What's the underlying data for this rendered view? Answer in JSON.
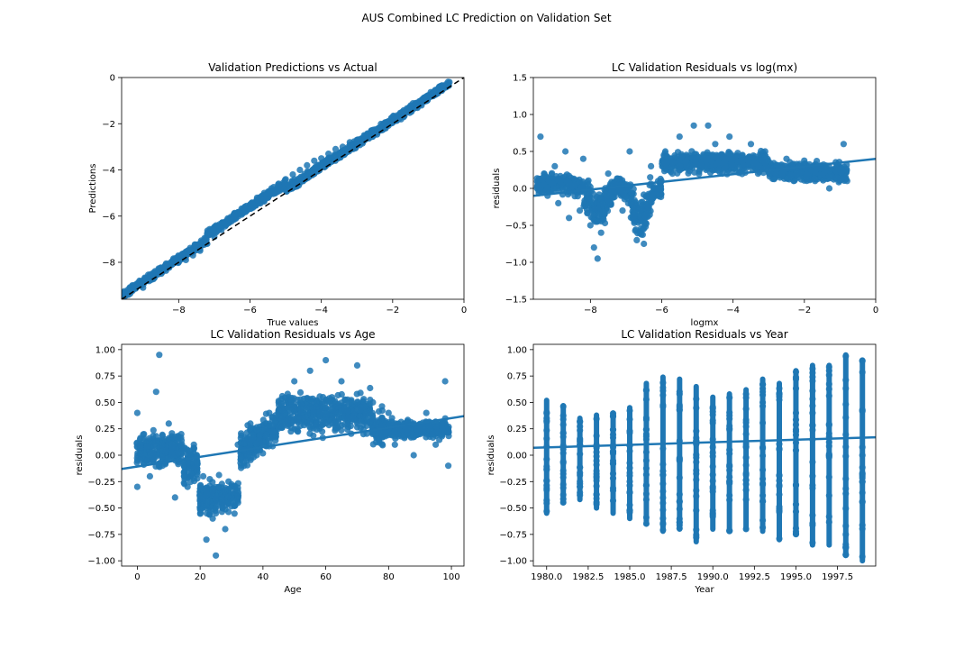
{
  "figure": {
    "suptitle": "AUS Combined LC Prediction on Validation Set"
  },
  "chart_data": [
    {
      "type": "scatter",
      "title": "Validation Predictions vs Actual",
      "xlabel": "True values",
      "ylabel": "Predictions",
      "xlim": [
        -9.6,
        0
      ],
      "ylim": [
        -9.6,
        0
      ],
      "xticks": [
        "−8",
        "−6",
        "−4",
        "−2",
        "0"
      ],
      "yticks": [
        "0",
        "−2",
        "−4",
        "−6",
        "−8"
      ],
      "xtick_values": [
        -8,
        -6,
        -4,
        -2,
        0
      ],
      "ytick_values": [
        0,
        -2,
        -4,
        -6,
        -8
      ],
      "reference_line": {
        "style": "dashed",
        "color": "#000000",
        "from": [
          -9.6,
          -9.6
        ],
        "to": [
          0,
          0
        ]
      },
      "trend": "predictions track true values closely along identity; slight overprediction around −7 to −5",
      "points": [
        [
          -9.5,
          -9.3
        ],
        [
          -9.3,
          -9.0
        ],
        [
          -9.1,
          -8.8
        ],
        [
          -9.0,
          -9.1
        ],
        [
          -8.8,
          -8.6
        ],
        [
          -8.6,
          -8.4
        ],
        [
          -8.4,
          -8.3
        ],
        [
          -8.2,
          -8.1
        ],
        [
          -8.0,
          -8.0
        ],
        [
          -7.8,
          -7.9
        ],
        [
          -7.6,
          -7.7
        ],
        [
          -7.4,
          -7.5
        ],
        [
          -7.2,
          -7.2
        ],
        [
          -7.0,
          -6.9
        ],
        [
          -6.8,
          -6.6
        ],
        [
          -6.6,
          -6.3
        ],
        [
          -6.4,
          -6.1
        ],
        [
          -6.2,
          -5.8
        ],
        [
          -6.0,
          -5.5
        ],
        [
          -5.8,
          -5.2
        ],
        [
          -5.6,
          -5.0
        ],
        [
          -5.4,
          -4.8
        ],
        [
          -5.2,
          -4.6
        ],
        [
          -5.0,
          -4.4
        ],
        [
          -4.8,
          -4.2
        ],
        [
          -4.6,
          -4.0
        ],
        [
          -4.4,
          -3.8
        ],
        [
          -4.2,
          -3.6
        ],
        [
          -4.0,
          -3.5
        ],
        [
          -3.8,
          -3.3
        ],
        [
          -3.6,
          -3.1
        ],
        [
          -3.4,
          -3.0
        ],
        [
          -3.2,
          -2.8
        ],
        [
          -3.0,
          -2.7
        ],
        [
          -2.8,
          -2.5
        ],
        [
          -2.6,
          -2.3
        ],
        [
          -2.4,
          -2.2
        ],
        [
          -2.2,
          -2.0
        ],
        [
          -2.0,
          -1.8
        ],
        [
          -1.8,
          -1.6
        ],
        [
          -1.6,
          -1.4
        ],
        [
          -1.4,
          -1.2
        ],
        [
          -1.2,
          -1.0
        ],
        [
          -1.0,
          -0.8
        ],
        [
          -0.8,
          -0.6
        ],
        [
          -0.6,
          -0.5
        ]
      ],
      "color": "#1f77b4"
    },
    {
      "type": "scatter",
      "title": "LC Validation Residuals vs log(mx)",
      "xlabel": "logmx",
      "ylabel": "residuals",
      "xlim": [
        -9.6,
        0
      ],
      "ylim": [
        -1.5,
        1.5
      ],
      "xticks": [
        "−8",
        "−6",
        "−4",
        "−2",
        "0"
      ],
      "yticks": [
        "1.5",
        "1.0",
        "0.5",
        "0.0",
        "−0.5",
        "−1.0",
        "−1.5"
      ],
      "xtick_values": [
        -8,
        -6,
        -4,
        -2,
        0
      ],
      "ytick_values": [
        1.5,
        1.0,
        0.5,
        0.0,
        -0.5,
        -1.0,
        -1.5
      ],
      "regression": {
        "x": [
          -9.6,
          0
        ],
        "y": [
          -0.1,
          0.4
        ]
      },
      "trend": "residuals dip to about −0.9 near logmx −7.8 and −6.5, rise to about 0.8 near −5 to −4, settle near 0.2 for logmx above −3",
      "points": [
        [
          -9.4,
          0.7
        ],
        [
          -9.3,
          0.2
        ],
        [
          -9.2,
          -0.1
        ],
        [
          -9.0,
          0.3
        ],
        [
          -8.9,
          -0.2
        ],
        [
          -8.7,
          0.5
        ],
        [
          -8.6,
          -0.4
        ],
        [
          -8.5,
          0.1
        ],
        [
          -8.3,
          -0.3
        ],
        [
          -8.2,
          0.4
        ],
        [
          -8.0,
          -0.5
        ],
        [
          -7.9,
          -0.8
        ],
        [
          -7.8,
          -0.95
        ],
        [
          -7.7,
          -0.6
        ],
        [
          -7.5,
          0.2
        ],
        [
          -7.3,
          0.0
        ],
        [
          -7.1,
          -0.3
        ],
        [
          -6.9,
          0.5
        ],
        [
          -6.7,
          -0.7
        ],
        [
          -6.5,
          -0.75
        ],
        [
          -6.3,
          0.3
        ],
        [
          -6.1,
          0.1
        ],
        [
          -5.9,
          0.5
        ],
        [
          -5.7,
          0.2
        ],
        [
          -5.5,
          0.7
        ],
        [
          -5.3,
          0.4
        ],
        [
          -5.1,
          0.85
        ],
        [
          -4.9,
          0.3
        ],
        [
          -4.7,
          0.85
        ],
        [
          -4.5,
          0.6
        ],
        [
          -4.3,
          0.2
        ],
        [
          -4.1,
          0.7
        ],
        [
          -3.9,
          0.4
        ],
        [
          -3.7,
          0.3
        ],
        [
          -3.5,
          0.6
        ],
        [
          -3.3,
          0.2
        ],
        [
          -3.1,
          0.5
        ],
        [
          -2.9,
          0.3
        ],
        [
          -2.7,
          0.2
        ],
        [
          -2.5,
          0.4
        ],
        [
          -2.3,
          0.1
        ],
        [
          -2.1,
          0.3
        ],
        [
          -1.9,
          0.2
        ],
        [
          -1.7,
          0.1
        ],
        [
          -1.5,
          0.3
        ],
        [
          -1.3,
          0.0
        ],
        [
          -1.1,
          0.2
        ],
        [
          -0.9,
          0.6
        ],
        [
          -0.8,
          0.1
        ]
      ],
      "color": "#1f77b4"
    },
    {
      "type": "scatter",
      "title": "LC Validation  Residuals vs Age",
      "xlabel": "Age",
      "ylabel": "residuals",
      "xlim": [
        -5,
        104
      ],
      "ylim": [
        -1.05,
        1.05
      ],
      "xticks": [
        "0",
        "20",
        "40",
        "60",
        "80",
        "100"
      ],
      "yticks": [
        "1.00",
        "0.75",
        "0.50",
        "0.25",
        "0.00",
        "−0.25",
        "−0.50",
        "−0.75",
        "−1.00"
      ],
      "xtick_values": [
        0,
        20,
        40,
        60,
        80,
        100
      ],
      "ytick_values": [
        1.0,
        0.75,
        0.5,
        0.25,
        0.0,
        -0.25,
        -0.5,
        -0.75,
        -1.0
      ],
      "regression": {
        "x": [
          -5,
          104
        ],
        "y": [
          -0.13,
          0.37
        ]
      },
      "trend": "residuals near 0 for ages 0–15, dip to about −0.9 around ages 22–30, rise to about 0.85 around ages 55–70, ~0.2 at ages 80–100",
      "points": [
        [
          0,
          0.4
        ],
        [
          0,
          -0.3
        ],
        [
          2,
          0.1
        ],
        [
          4,
          -0.2
        ],
        [
          6,
          0.6
        ],
        [
          7,
          0.95
        ],
        [
          8,
          -0.1
        ],
        [
          10,
          0.3
        ],
        [
          12,
          -0.4
        ],
        [
          14,
          0.2
        ],
        [
          16,
          -0.3
        ],
        [
          18,
          0.1
        ],
        [
          20,
          -0.5
        ],
        [
          21,
          -0.2
        ],
        [
          22,
          -0.8
        ],
        [
          24,
          -0.6
        ],
        [
          25,
          -0.95
        ],
        [
          26,
          -0.4
        ],
        [
          28,
          -0.7
        ],
        [
          30,
          -0.3
        ],
        [
          32,
          0.1
        ],
        [
          34,
          -0.1
        ],
        [
          36,
          0.3
        ],
        [
          38,
          0.0
        ],
        [
          40,
          0.2
        ],
        [
          42,
          0.4
        ],
        [
          45,
          0.5
        ],
        [
          48,
          0.3
        ],
        [
          50,
          0.7
        ],
        [
          52,
          0.4
        ],
        [
          55,
          0.8
        ],
        [
          58,
          0.5
        ],
        [
          60,
          0.9
        ],
        [
          62,
          0.3
        ],
        [
          65,
          0.7
        ],
        [
          68,
          0.4
        ],
        [
          70,
          0.85
        ],
        [
          72,
          0.2
        ],
        [
          75,
          0.5
        ],
        [
          78,
          0.3
        ],
        [
          80,
          0.4
        ],
        [
          82,
          0.1
        ],
        [
          85,
          0.3
        ],
        [
          88,
          0.0
        ],
        [
          90,
          0.2
        ],
        [
          92,
          0.4
        ],
        [
          95,
          0.1
        ],
        [
          98,
          0.7
        ],
        [
          99,
          -0.1
        ]
      ],
      "color": "#1f77b4"
    },
    {
      "type": "scatter",
      "title": "LC Validation  Residuals vs Year",
      "xlabel": "Year",
      "ylabel": "residuals",
      "xlim": [
        1979.2,
        1999.8
      ],
      "ylim": [
        -1.05,
        1.05
      ],
      "xticks": [
        "1980.0",
        "1982.5",
        "1985.0",
        "1987.5",
        "1990.0",
        "1992.5",
        "1995.0",
        "1997.5"
      ],
      "yticks": [
        "1.00",
        "0.75",
        "0.50",
        "0.25",
        "0.00",
        "−0.25",
        "−0.50",
        "−0.75",
        "−1.00"
      ],
      "xtick_values": [
        1980.0,
        1982.5,
        1985.0,
        1987.5,
        1990.0,
        1992.5,
        1995.0,
        1997.5
      ],
      "ytick_values": [
        1.0,
        0.75,
        0.5,
        0.25,
        0.0,
        -0.25,
        -0.5,
        -0.75,
        -1.0
      ],
      "regression": {
        "x": [
          1979.2,
          1999.8
        ],
        "y": [
          0.07,
          0.17
        ]
      },
      "years": [
        1980,
        1981,
        1982,
        1983,
        1984,
        1985,
        1986,
        1987,
        1988,
        1989,
        1990,
        1991,
        1992,
        1993,
        1994,
        1995,
        1996,
        1997,
        1998,
        1999
      ],
      "year_ranges": [
        [
          -0.55,
          0.52
        ],
        [
          -0.45,
          0.47
        ],
        [
          -0.42,
          0.35
        ],
        [
          -0.5,
          0.38
        ],
        [
          -0.55,
          0.4
        ],
        [
          -0.6,
          0.45
        ],
        [
          -0.65,
          0.68
        ],
        [
          -0.72,
          0.74
        ],
        [
          -0.7,
          0.72
        ],
        [
          -0.82,
          0.65
        ],
        [
          -0.7,
          0.55
        ],
        [
          -0.72,
          0.58
        ],
        [
          -0.7,
          0.62
        ],
        [
          -0.72,
          0.72
        ],
        [
          -0.8,
          0.68
        ],
        [
          -0.75,
          0.8
        ],
        [
          -0.85,
          0.85
        ],
        [
          -0.85,
          0.85
        ],
        [
          -0.95,
          0.95
        ],
        [
          -1.0,
          0.9
        ]
      ],
      "color": "#1f77b4"
    }
  ]
}
